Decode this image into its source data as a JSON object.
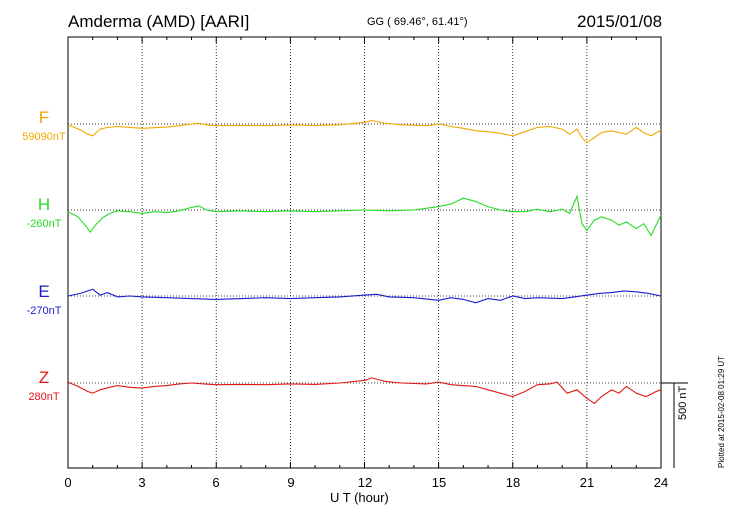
{
  "header": {
    "station": "Amderma (AMD)  [AARI]",
    "coords": "GG ( 69.46°,  61.41°)",
    "date": "2015/01/08"
  },
  "plotted": "Plotted at 2015-02-08 01:29 UT",
  "scale_bar": {
    "label": "500 nT",
    "value_nT": 500
  },
  "chart_data": {
    "type": "line",
    "xlabel": "U T (hour)",
    "xlim": [
      0,
      24
    ],
    "xticks": [
      "0",
      "3",
      "6",
      "9",
      "12",
      "15",
      "18",
      "21",
      "24"
    ],
    "grid": "dotted vertical lines every 3 hours; dotted baseline per component",
    "series": [
      {
        "name": "F",
        "baseline": "59090nT",
        "color": "#f0a800",
        "x": [
          0,
          0.5,
          0.8,
          1.0,
          1.3,
          1.6,
          2,
          2.5,
          3,
          3.5,
          4,
          4.5,
          5,
          5.3,
          5.6,
          6,
          7,
          8,
          9,
          10,
          11,
          12,
          12.3,
          12.8,
          13.5,
          14.5,
          15,
          15.5,
          16,
          16.5,
          17,
          17.5,
          18,
          18.5,
          19,
          19.5,
          20,
          20.3,
          20.6,
          20.8,
          21,
          21.3,
          21.6,
          22,
          22.3,
          22.6,
          23,
          23.3,
          23.6,
          24
        ],
        "y": [
          -5,
          -35,
          -60,
          -70,
          -30,
          -20,
          -15,
          -20,
          -25,
          -22,
          -18,
          -10,
          0,
          5,
          -5,
          -10,
          -8,
          -10,
          -6,
          -8,
          -5,
          10,
          20,
          5,
          -5,
          -10,
          0,
          -15,
          -25,
          -40,
          -45,
          -55,
          -70,
          -45,
          -20,
          -15,
          -30,
          -60,
          -30,
          -80,
          -110,
          -80,
          -50,
          -40,
          -50,
          -60,
          -20,
          -50,
          -70,
          -35
        ],
        "unit": "nT (relative to baseline)"
      },
      {
        "name": "H",
        "baseline": "-260nT",
        "color": "#22dd22",
        "x": [
          0,
          0.4,
          0.7,
          0.9,
          1.1,
          1.4,
          1.7,
          2,
          2.5,
          3,
          3.5,
          4,
          4.5,
          5,
          5.3,
          5.6,
          6,
          7,
          8,
          9,
          10,
          11,
          12,
          13,
          14,
          15,
          15.5,
          16,
          16.5,
          17,
          17.5,
          18,
          18.5,
          19,
          19.5,
          20,
          20.3,
          20.6,
          20.8,
          21,
          21.3,
          21.6,
          22,
          22.3,
          22.6,
          23,
          23.3,
          23.6,
          24
        ],
        "y": [
          -10,
          -40,
          -90,
          -130,
          -90,
          -45,
          -20,
          -5,
          -10,
          -20,
          -10,
          -15,
          -5,
          15,
          25,
          0,
          -10,
          -5,
          -10,
          -5,
          -10,
          -5,
          0,
          -5,
          0,
          20,
          35,
          70,
          50,
          20,
          0,
          -10,
          -10,
          5,
          -10,
          5,
          -20,
          80,
          -80,
          -120,
          -60,
          -40,
          -60,
          -90,
          -70,
          -110,
          -80,
          -150,
          -30
        ],
        "unit": "nT (relative to baseline)"
      },
      {
        "name": "E",
        "baseline": "-270nT",
        "color": "#1a1ad0",
        "x": [
          0,
          0.5,
          1,
          1.3,
          1.6,
          2,
          2.5,
          3,
          4,
          5,
          6,
          7,
          8,
          9,
          10,
          11,
          12,
          12.5,
          13,
          14,
          15,
          15.5,
          16,
          16.5,
          17,
          17.5,
          18,
          18.5,
          19,
          20,
          20.5,
          21,
          21.5,
          22,
          22.5,
          23,
          23.5,
          24
        ],
        "y": [
          0,
          15,
          40,
          5,
          20,
          -5,
          0,
          -5,
          -10,
          -15,
          -20,
          -15,
          -10,
          -15,
          -10,
          -5,
          5,
          10,
          -5,
          -10,
          -25,
          -10,
          -20,
          -40,
          -15,
          -25,
          0,
          -15,
          -10,
          -15,
          -5,
          5,
          15,
          20,
          30,
          25,
          15,
          0
        ],
        "unit": "nT (relative to baseline)"
      },
      {
        "name": "Z",
        "baseline": "280nT",
        "color": "#e01818",
        "x": [
          0,
          0.4,
          0.8,
          1.0,
          1.3,
          1.7,
          2,
          2.5,
          3,
          3.5,
          4,
          4.5,
          5,
          5.5,
          6,
          7,
          8,
          9,
          10,
          11,
          12,
          12.3,
          12.8,
          13.5,
          14.5,
          15,
          15.5,
          16,
          16.5,
          17,
          17.5,
          18,
          18.5,
          19,
          19.5,
          19.8,
          20.2,
          20.6,
          21,
          21.3,
          21.6,
          22,
          22.3,
          22.6,
          23,
          23.4,
          23.8,
          24
        ],
        "y": [
          5,
          -20,
          -50,
          -60,
          -40,
          -25,
          -15,
          -25,
          -30,
          -20,
          -15,
          -5,
          0,
          -5,
          -10,
          -8,
          -10,
          -5,
          -8,
          0,
          15,
          30,
          10,
          0,
          -5,
          5,
          -10,
          -15,
          -20,
          -40,
          -60,
          -80,
          -50,
          -10,
          -5,
          5,
          -60,
          -40,
          -90,
          -120,
          -80,
          -40,
          -60,
          -20,
          -60,
          -80,
          -50,
          -40
        ],
        "unit": "nT (relative to baseline)"
      }
    ]
  }
}
